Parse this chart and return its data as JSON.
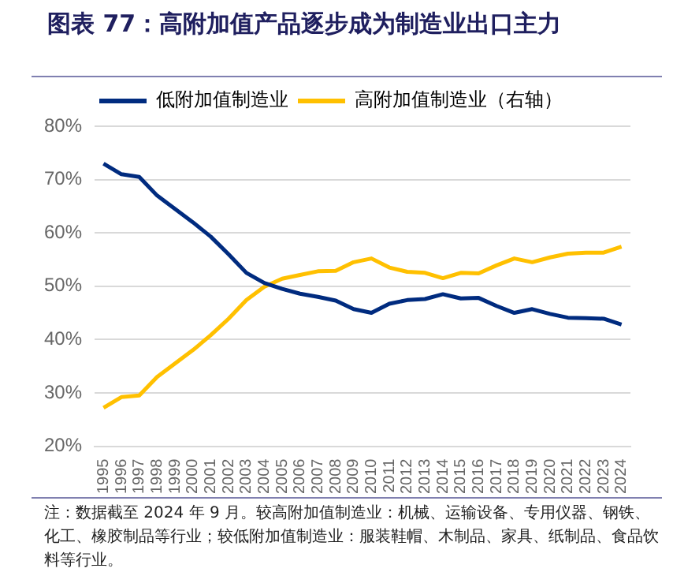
{
  "chart_data": {
    "type": "line",
    "title": "图表 77：高附加值产品逐步成为制造业出口主力",
    "categories": [
      "1995",
      "1996",
      "1997",
      "1998",
      "1999",
      "2000",
      "2001",
      "2002",
      "2003",
      "2004",
      "2005",
      "2006",
      "2007",
      "2008",
      "2009",
      "2010",
      "2011",
      "2012",
      "2013",
      "2014",
      "2015",
      "2016",
      "2017",
      "2018",
      "2019",
      "2020",
      "2021",
      "2022",
      "2023",
      "2024"
    ],
    "series": [
      {
        "name": "低附加值制造业",
        "color": "#002b7f",
        "values": [
          73,
          71,
          70.5,
          67,
          64.5,
          62,
          59.3,
          56,
          52.5,
          50.6,
          49.5,
          48.6,
          48,
          47.3,
          45.7,
          45,
          46.7,
          47.4,
          47.6,
          48.5,
          47.7,
          47.8,
          46.3,
          45,
          45.7,
          44.8,
          44.1,
          44,
          43.9,
          42.8
        ]
      },
      {
        "name": "高附加值制造业（右轴）",
        "color": "#ffc000",
        "values": [
          27.2,
          29.2,
          29.5,
          33,
          35.5,
          38,
          40.8,
          43.9,
          47.4,
          49.9,
          51.4,
          52.1,
          52.8,
          52.9,
          54.5,
          55.2,
          53.5,
          52.7,
          52.5,
          51.5,
          52.5,
          52.4,
          53.9,
          55.2,
          54.5,
          55.4,
          56.1,
          56.3,
          56.3,
          57.4
        ]
      }
    ],
    "ylim": [
      20,
      80
    ],
    "yticks": [
      {
        "value": 20,
        "label": "20%"
      },
      {
        "value": 30,
        "label": "30%"
      },
      {
        "value": 40,
        "label": "40%"
      },
      {
        "value": 50,
        "label": "50%"
      },
      {
        "value": 60,
        "label": "60%"
      },
      {
        "value": 70,
        "label": "70%"
      },
      {
        "value": 80,
        "label": "80%"
      }
    ],
    "grid": "y",
    "legend": "top",
    "marker": "none",
    "line_style": "solid",
    "annotations": [
      "注：数据截至 2024 年 9 月。较高附加值制造业：机械、运输设备、专用仪器、钢铁、化工、橡胶制品等行业；较低附加值制造业：服装鞋帽、木制品、家具、纸制品、食品饮料等行业。"
    ]
  }
}
